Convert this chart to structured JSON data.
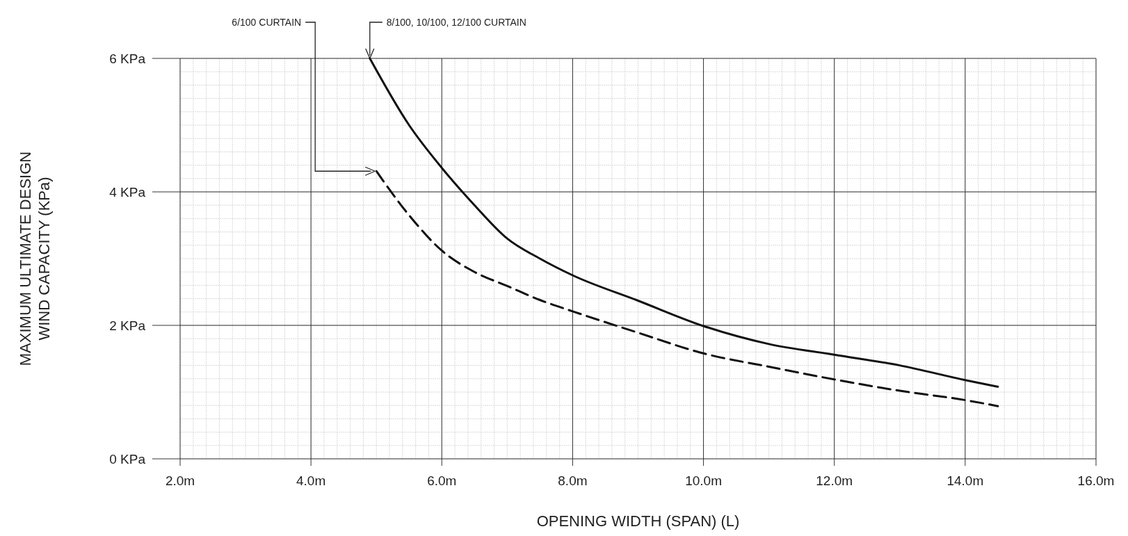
{
  "chart_data": {
    "type": "line",
    "xlabel": "OPENING WIDTH (SPAN) (L)",
    "ylabel": "MAXIMUM ULTIMATE DESIGN\nWIND CAPACITY (KPa)",
    "xlim": [
      2,
      16
    ],
    "xticks": [
      {
        "value": 2,
        "label": "2.0m"
      },
      {
        "value": 4,
        "label": "4.0m"
      },
      {
        "value": 6,
        "label": "6.0m"
      },
      {
        "value": 8,
        "label": "8.0m"
      },
      {
        "value": 10,
        "label": "10.0m"
      },
      {
        "value": 12,
        "label": "12.0m"
      },
      {
        "value": 14,
        "label": "14.0m"
      },
      {
        "value": 16,
        "label": "16.0m"
      }
    ],
    "ylim": [
      0,
      6
    ],
    "yticks": [
      {
        "value": 0,
        "label": "0 KPa"
      },
      {
        "value": 2,
        "label": "2 KPa"
      },
      {
        "value": 4,
        "label": "4 KPa"
      },
      {
        "value": 6,
        "label": "6 KPa"
      }
    ],
    "grid": true,
    "series": [
      {
        "color": "#111111",
        "line_style": "solid",
        "x": [
          4.9,
          5.5,
          6,
          6.5,
          7,
          7.5,
          8,
          9,
          10,
          11,
          12,
          13,
          14,
          14.5
        ],
        "values": [
          6.0,
          5.0,
          4.36,
          3.8,
          3.3,
          3.0,
          2.75,
          2.37,
          1.99,
          1.72,
          1.56,
          1.4,
          1.18,
          1.08
        ]
      },
      {
        "color": "#111111",
        "line_style": "dashed",
        "x": [
          5,
          5.5,
          6,
          6.5,
          7,
          7.5,
          8,
          9,
          10,
          11,
          12,
          13,
          14,
          14.5
        ],
        "values": [
          4.31,
          3.65,
          3.12,
          2.8,
          2.59,
          2.38,
          2.21,
          1.89,
          1.58,
          1.38,
          1.19,
          1.02,
          0.88,
          0.79
        ]
      }
    ],
    "annotations": [
      {
        "text": "6/100 CURTAIN",
        "x": 5,
        "y": 4.31
      },
      {
        "text": "8/100, 10/100, 12/100 CURTAIN",
        "x": 4.9,
        "y": 6.0
      }
    ]
  }
}
